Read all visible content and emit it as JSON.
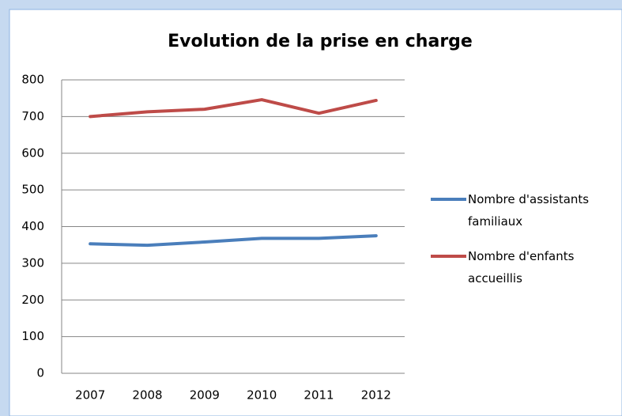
{
  "chart_data": {
    "type": "line",
    "title": "Evolution de la prise en charge",
    "categories": [
      "2007",
      "2008",
      "2009",
      "2010",
      "2011",
      "2012"
    ],
    "series": [
      {
        "name": "Nombre d'assistants familiaux",
        "color": "#4a7ebb",
        "values": [
          353,
          349,
          358,
          368,
          368,
          375
        ]
      },
      {
        "name": "Nombre d'enfants accueillis",
        "color": "#be4b48",
        "values": [
          700,
          713,
          720,
          746,
          709,
          744
        ]
      }
    ],
    "ylim": [
      0,
      800
    ],
    "yticks": [
      0,
      100,
      200,
      300,
      400,
      500,
      600,
      700,
      800
    ],
    "grid": true,
    "legend": "right"
  }
}
